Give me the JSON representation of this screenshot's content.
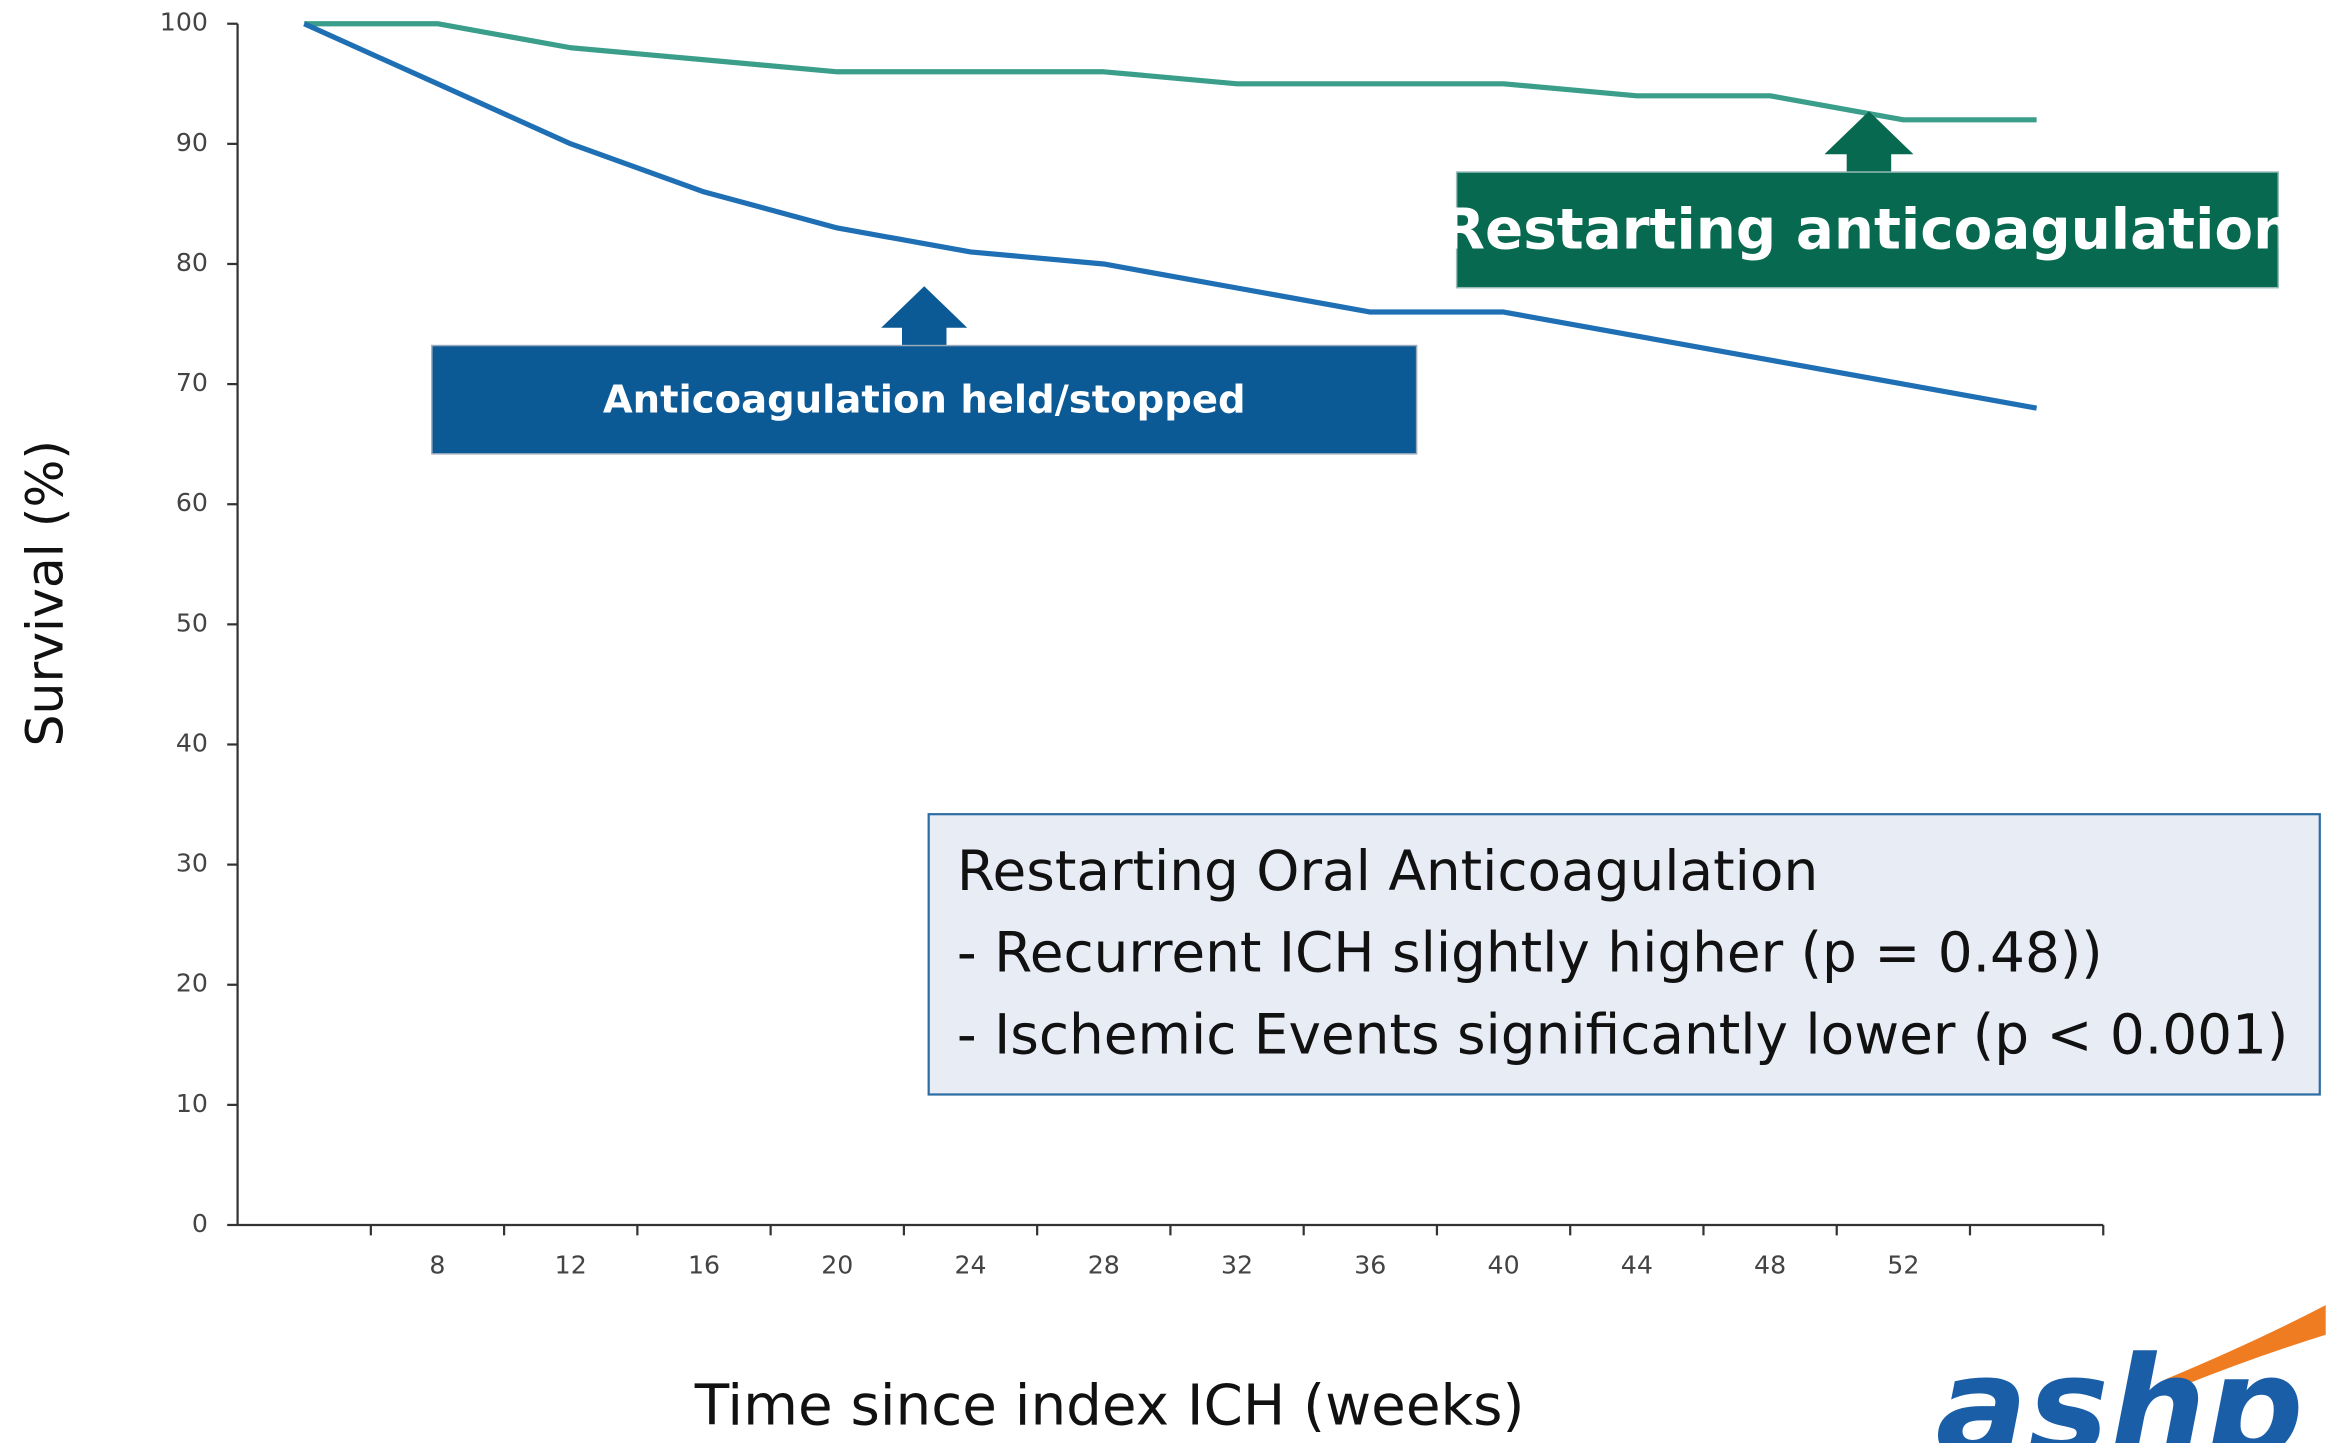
{
  "chart_data": {
    "type": "line",
    "x_label": "Time since index ICH (weeks)",
    "y_label": "Survival (%)",
    "x": [
      4,
      8,
      12,
      16,
      20,
      24,
      28,
      32,
      36,
      40,
      44,
      48,
      52,
      56
    ],
    "series": [
      {
        "name": "Restarting anticoagulation",
        "color": "#3a9e8a",
        "values": [
          100,
          100,
          98,
          97,
          96,
          96,
          96,
          95,
          95,
          95,
          94,
          94,
          92,
          92
        ]
      },
      {
        "name": "Anticoagulation held/stopped",
        "color": "#1f6fb5",
        "values": [
          100,
          95,
          90,
          86,
          83,
          81,
          80,
          78,
          76,
          76,
          74,
          72,
          70,
          68
        ]
      }
    ],
    "xlim": [
      2,
      58
    ],
    "ylim": [
      0,
      100
    ],
    "xticks": [
      8,
      12,
      16,
      20,
      24,
      28,
      32,
      36,
      40,
      44,
      48,
      52
    ],
    "yticks": [
      0,
      10,
      20,
      30,
      40,
      50,
      60,
      70,
      80,
      90,
      100
    ],
    "info_box": [
      "Restarting Oral Anticoagulation",
      "- Recurrent ICH slightly higher (p = 0.48))",
      "- Ischemic Events significantly lower (p < 0.001)"
    ]
  },
  "logo": "ashp"
}
